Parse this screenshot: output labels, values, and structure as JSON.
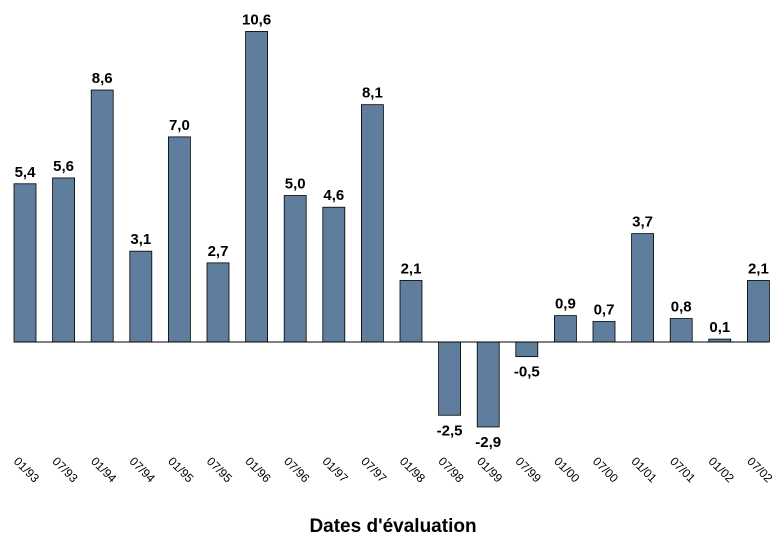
{
  "chart_data": {
    "type": "bar",
    "categories": [
      "01/93",
      "07/93",
      "01/94",
      "07/94",
      "01/95",
      "07/95",
      "01/96",
      "07/96",
      "01/97",
      "07/97",
      "01/98",
      "07/98",
      "01/99",
      "07/99",
      "01/00",
      "07/00",
      "01/01",
      "07/01",
      "01/02",
      "07/02"
    ],
    "values": [
      5.4,
      5.6,
      8.6,
      3.1,
      7.0,
      2.7,
      10.6,
      5.0,
      4.6,
      8.1,
      2.1,
      -2.5,
      -2.9,
      -0.5,
      0.9,
      0.7,
      3.7,
      0.8,
      0.1,
      2.1
    ],
    "value_labels": [
      "5,4",
      "5,6",
      "8,6",
      "3,1",
      "7,0",
      "2,7",
      "10,6",
      "5,0",
      "4,6",
      "8,1",
      "2,1",
      "-2,5",
      "-2,9",
      "-0,5",
      "0,9",
      "0,7",
      "3,7",
      "0,8",
      "0,1",
      "2,1"
    ],
    "title": "",
    "xlabel": "Dates d'évaluation",
    "ylabel": "",
    "ylim": [
      -2.9,
      10.6
    ],
    "grid": false,
    "bar_color": "#5f7d9c",
    "stroke_color": "#000000"
  }
}
